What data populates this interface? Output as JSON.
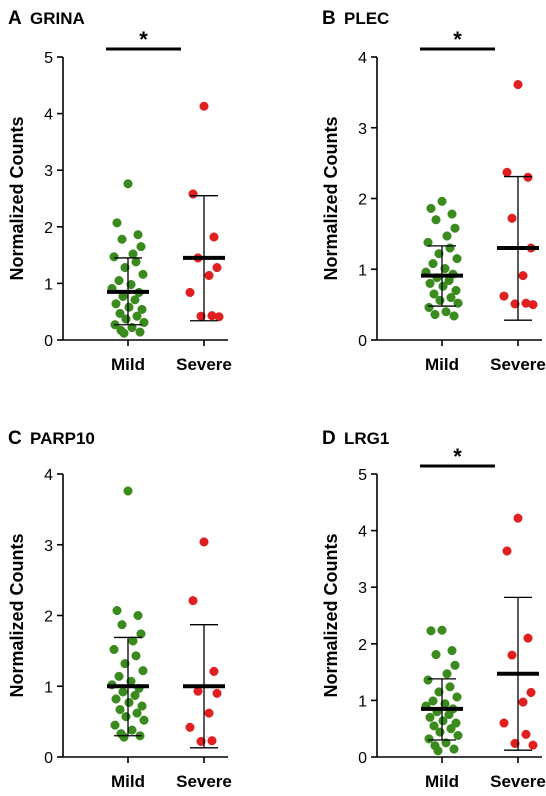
{
  "chart_data": [
    {
      "panel": "A",
      "type": "scatter",
      "title": "GRINA",
      "ylabel": "Normalized Counts",
      "categories": [
        "Mild",
        "Severe"
      ],
      "ylim": [
        0,
        5
      ],
      "yticks": [
        0,
        1,
        2,
        3,
        4,
        5
      ],
      "significance": "*",
      "series": [
        {
          "name": "Mild",
          "color": "#3a8a1e",
          "values": [
            2.76,
            2.07,
            1.86,
            1.78,
            1.65,
            1.52,
            1.47,
            1.38,
            1.28,
            1.16,
            1.05,
            0.98,
            0.91,
            0.84,
            0.77,
            0.71,
            0.64,
            0.58,
            0.54,
            0.47,
            0.42,
            0.37,
            0.31,
            0.27,
            0.22,
            0.17,
            0.14,
            0.12
          ],
          "mean": 0.85,
          "sd_low": 0.27,
          "sd_high": 1.45
        },
        {
          "name": "Severe",
          "color": "#e02020",
          "values": [
            4.13,
            2.58,
            1.82,
            1.45,
            1.28,
            1.14,
            0.84,
            0.43,
            0.42,
            0.41
          ],
          "mean": 1.45,
          "sd_low": 0.34,
          "sd_high": 2.55
        }
      ]
    },
    {
      "panel": "B",
      "type": "scatter",
      "title": "PLEC",
      "ylabel": "Normalized Counts",
      "categories": [
        "Mild",
        "Severe"
      ],
      "ylim": [
        0,
        4
      ],
      "yticks": [
        0,
        1,
        2,
        3,
        4
      ],
      "significance": "*",
      "series": [
        {
          "name": "Mild",
          "color": "#3a8a1e",
          "values": [
            1.96,
            1.86,
            1.78,
            1.7,
            1.58,
            1.47,
            1.38,
            1.3,
            1.22,
            1.15,
            1.08,
            1.01,
            0.96,
            0.93,
            0.88,
            0.84,
            0.8,
            0.76,
            0.7,
            0.65,
            0.6,
            0.56,
            0.52,
            0.46,
            0.4,
            0.36,
            0.34
          ],
          "mean": 0.91,
          "sd_low": 0.48,
          "sd_high": 1.33
        },
        {
          "name": "Severe",
          "color": "#e02020",
          "values": [
            3.61,
            2.37,
            2.3,
            1.72,
            1.3,
            0.91,
            0.62,
            0.52,
            0.51,
            0.5
          ],
          "mean": 1.3,
          "sd_low": 0.28,
          "sd_high": 2.31
        }
      ]
    },
    {
      "panel": "C",
      "type": "scatter",
      "title": "PARP10",
      "ylabel": "Normalized Counts",
      "categories": [
        "Mild",
        "Severe"
      ],
      "ylim": [
        0,
        4
      ],
      "yticks": [
        0,
        1,
        2,
        3,
        4
      ],
      "significance": "",
      "series": [
        {
          "name": "Mild",
          "color": "#3a8a1e",
          "values": [
            3.76,
            2.07,
            2.0,
            1.87,
            1.74,
            1.64,
            1.52,
            1.43,
            1.32,
            1.22,
            1.14,
            1.07,
            1.02,
            0.97,
            0.92,
            0.87,
            0.82,
            0.77,
            0.72,
            0.67,
            0.62,
            0.57,
            0.52,
            0.45,
            0.38,
            0.33,
            0.3,
            0.28
          ],
          "mean": 1.0,
          "sd_low": 0.3,
          "sd_high": 1.69
        },
        {
          "name": "Severe",
          "color": "#e02020",
          "values": [
            3.04,
            2.21,
            1.21,
            0.93,
            0.9,
            0.62,
            0.42,
            0.23,
            0.22
          ],
          "mean": 1.0,
          "sd_low": 0.13,
          "sd_high": 1.87
        }
      ]
    },
    {
      "panel": "D",
      "type": "scatter",
      "title": "LRG1",
      "ylabel": "Normalized Counts",
      "categories": [
        "Mild",
        "Severe"
      ],
      "ylim": [
        0,
        5
      ],
      "yticks": [
        0,
        1,
        2,
        3,
        4,
        5
      ],
      "significance": "*",
      "series": [
        {
          "name": "Mild",
          "color": "#3a8a1e",
          "values": [
            2.24,
            2.23,
            1.88,
            1.81,
            1.62,
            1.47,
            1.36,
            1.24,
            1.15,
            1.06,
            0.99,
            0.94,
            0.9,
            0.85,
            0.8,
            0.75,
            0.7,
            0.64,
            0.6,
            0.55,
            0.5,
            0.44,
            0.38,
            0.32,
            0.25,
            0.2,
            0.14,
            0.11
          ],
          "mean": 0.85,
          "sd_low": 0.3,
          "sd_high": 1.38
        },
        {
          "name": "Severe",
          "color": "#e02020",
          "values": [
            4.22,
            3.64,
            2.1,
            1.8,
            1.14,
            0.97,
            0.6,
            0.4,
            0.24,
            0.21
          ],
          "mean": 1.47,
          "sd_low": 0.12,
          "sd_high": 2.82
        }
      ]
    }
  ]
}
